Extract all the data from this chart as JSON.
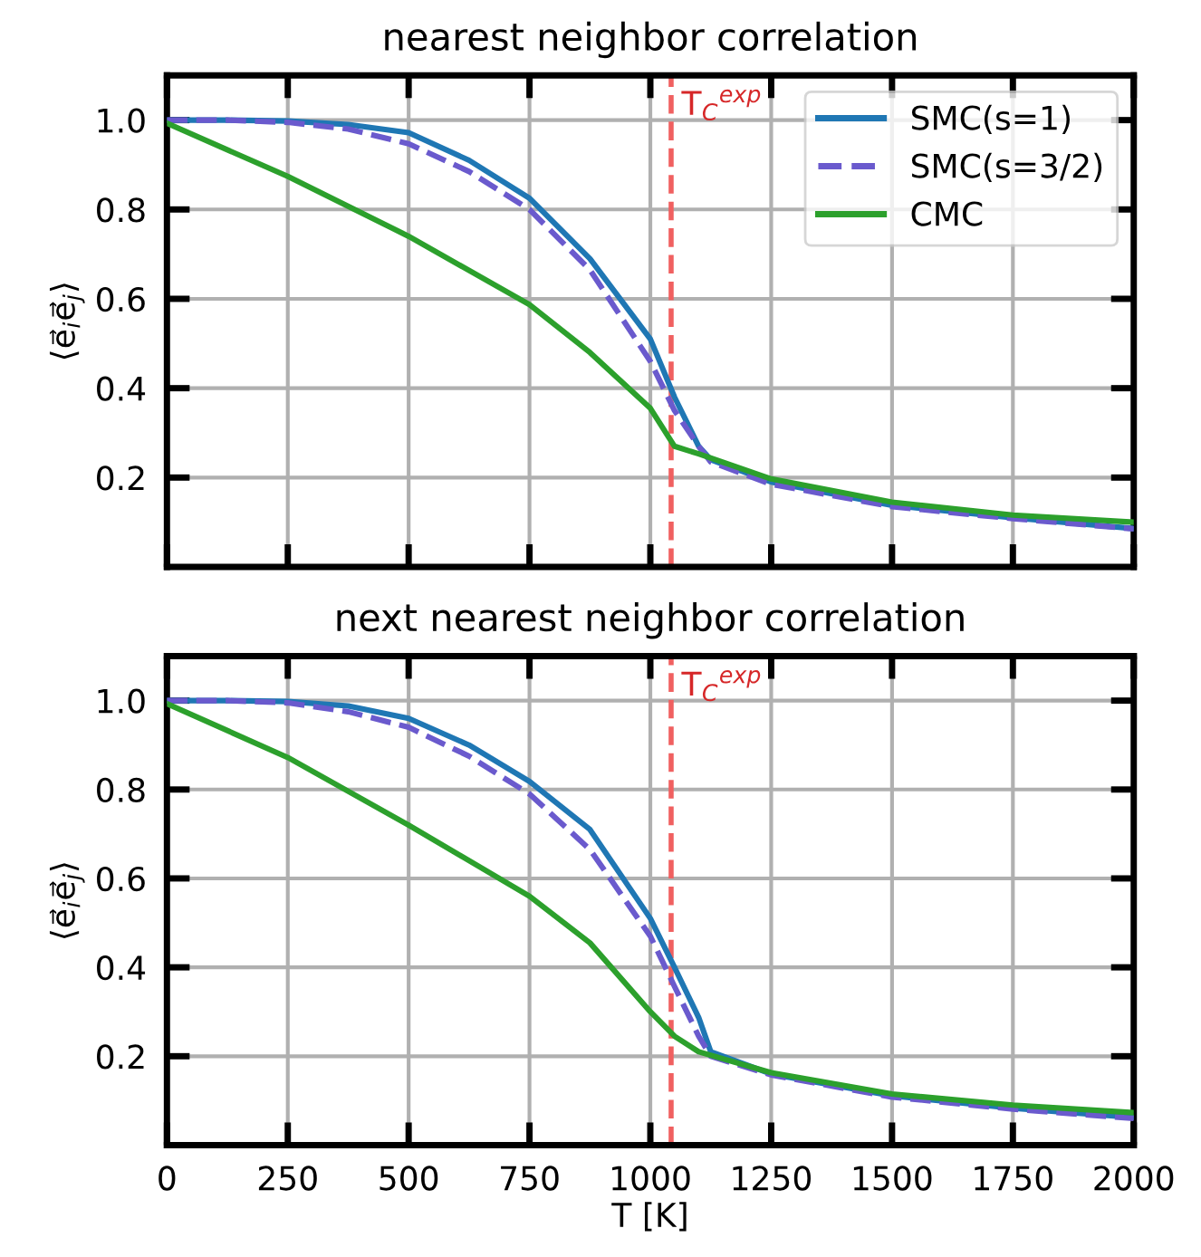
{
  "chart_data": [
    {
      "type": "line",
      "title": "nearest neighbor correlation",
      "ylabel": "⟨e⃗$_{i}$e⃗$_{j}$⟩",
      "xlim": [
        0,
        2000
      ],
      "xticks": [
        0,
        250,
        500,
        750,
        1000,
        1250,
        1500,
        1750,
        2000
      ],
      "ylim": [
        0,
        1.1
      ],
      "yticks": [
        0.2,
        0.4,
        0.6,
        0.8,
        {
          "value": 1,
          "label": "1.0"
        }
      ],
      "tick_labels": "y",
      "grid": true,
      "legend": "top right",
      "ref_lines": [
        {
          "axis": "x",
          "value": 1043,
          "label": "T$_{C}$$^{exp}$",
          "color": "#f06060",
          "line_style": "dashed"
        }
      ],
      "series": [
        {
          "name": "SMC(s=1)",
          "color": "#1f77b4",
          "line_style": "solid",
          "x": [
            0,
            125,
            250,
            375,
            500,
            625,
            750,
            875,
            1000,
            1050,
            1100,
            1125,
            1250,
            1500,
            1750,
            2000
          ],
          "values": [
            1.0,
            1.0,
            0.998,
            0.99,
            0.972,
            0.91,
            0.825,
            0.69,
            0.51,
            0.38,
            0.27,
            0.24,
            0.19,
            0.138,
            0.11,
            0.086
          ]
        },
        {
          "name": "SMC(s=3/2)",
          "color": "#6a5acd",
          "line_style": "dashed",
          "x": [
            0,
            125,
            250,
            375,
            500,
            625,
            750,
            875,
            1000,
            1050,
            1100,
            1125,
            1250,
            1500,
            1750,
            2000
          ],
          "values": [
            1.0,
            1.0,
            0.995,
            0.98,
            0.947,
            0.885,
            0.8,
            0.665,
            0.46,
            0.35,
            0.27,
            0.235,
            0.185,
            0.135,
            0.108,
            0.085
          ]
        },
        {
          "name": "CMC",
          "color": "#2ca02c",
          "line_style": "solid",
          "x": [
            0,
            250,
            500,
            750,
            875,
            1000,
            1050,
            1100,
            1250,
            1500,
            1750,
            2000
          ],
          "values": [
            0.993,
            0.874,
            0.74,
            0.587,
            0.48,
            0.355,
            0.27,
            0.253,
            0.197,
            0.145,
            0.116,
            0.1
          ]
        }
      ]
    },
    {
      "type": "line",
      "title": "next nearest neighbor correlation",
      "xlabel": "T [K]",
      "ylabel": "⟨e⃗$_{i}$e⃗$_{j}$⟩",
      "xlim": [
        0,
        2000
      ],
      "xticks": [
        0,
        250,
        500,
        750,
        1000,
        1250,
        1500,
        1750,
        2000
      ],
      "ylim": [
        0,
        1.1
      ],
      "yticks": [
        0.2,
        0.4,
        0.6,
        0.8,
        {
          "value": 1,
          "label": "1.0"
        }
      ],
      "grid": true,
      "ref_lines": [
        {
          "axis": "x",
          "value": 1043,
          "label": "T$_{C}$$^{exp}$",
          "color": "#f06060",
          "line_style": "dashed"
        }
      ],
      "series": [
        {
          "color": "#1f77b4",
          "line_style": "solid",
          "x": [
            0,
            125,
            250,
            375,
            500,
            625,
            750,
            875,
            1000,
            1050,
            1100,
            1125,
            1250,
            1500,
            1750,
            2000
          ],
          "values": [
            1.0,
            1.0,
            0.998,
            0.988,
            0.96,
            0.9,
            0.818,
            0.71,
            0.51,
            0.4,
            0.287,
            0.21,
            0.16,
            0.111,
            0.083,
            0.062
          ]
        },
        {
          "color": "#6a5acd",
          "line_style": "dashed",
          "x": [
            0,
            125,
            250,
            375,
            500,
            625,
            750,
            875,
            1000,
            1050,
            1100,
            1125,
            1250,
            1500,
            1750,
            2000
          ],
          "values": [
            1.0,
            1.0,
            0.995,
            0.975,
            0.94,
            0.875,
            0.79,
            0.665,
            0.47,
            0.357,
            0.245,
            0.2,
            0.158,
            0.108,
            0.081,
            0.06
          ]
        },
        {
          "color": "#2ca02c",
          "line_style": "solid",
          "x": [
            0,
            250,
            500,
            750,
            875,
            1000,
            1050,
            1100,
            1250,
            1500,
            1750,
            2000
          ],
          "values": [
            0.993,
            0.872,
            0.72,
            0.56,
            0.455,
            0.3,
            0.245,
            0.21,
            0.163,
            0.115,
            0.09,
            0.073
          ]
        }
      ]
    }
  ]
}
